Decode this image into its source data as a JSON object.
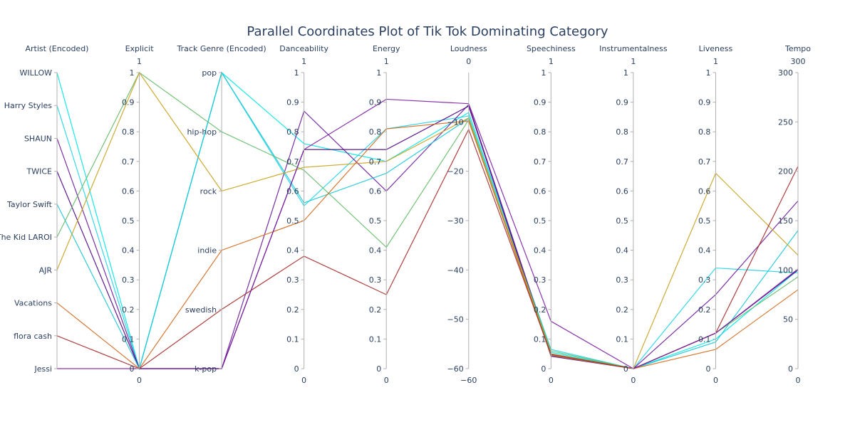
{
  "chart_data": {
    "type": "parallel_coordinates",
    "title": "Parallel Coordinates Plot of Tik Tok Dominating Category",
    "dimensions": [
      {
        "label": "Artist (Encoded)",
        "kind": "categorical",
        "categories": [
          "Jessi",
          "flora cash",
          "Vacations",
          "AJR",
          "The Kid LAROI",
          "Taylor Swift",
          "TWICE",
          "SHAUN",
          "Harry Styles",
          "WILLOW"
        ]
      },
      {
        "label": "Explicit",
        "kind": "numeric",
        "range": [
          0,
          1
        ],
        "ticks": [
          0,
          0.1,
          0.2,
          0.3,
          0.4,
          0.5,
          0.6,
          0.7,
          0.8,
          0.9,
          1
        ],
        "range_labels": [
          "0",
          "1"
        ]
      },
      {
        "label": "Track Genre (Encoded)",
        "kind": "categorical",
        "categories": [
          "k-pop",
          "swedish",
          "indie",
          "rock",
          "hip-hop",
          "pop"
        ]
      },
      {
        "label": "Danceability",
        "kind": "numeric",
        "range": [
          0,
          1
        ],
        "ticks": [
          0,
          0.1,
          0.2,
          0.3,
          0.4,
          0.5,
          0.6,
          0.7,
          0.8,
          0.9,
          1
        ],
        "range_labels": [
          "0",
          "1"
        ]
      },
      {
        "label": "Energy",
        "kind": "numeric",
        "range": [
          0,
          1
        ],
        "ticks": [
          0,
          0.1,
          0.2,
          0.3,
          0.4,
          0.5,
          0.6,
          0.7,
          0.8,
          0.9,
          1
        ],
        "range_labels": [
          "0",
          "1"
        ]
      },
      {
        "label": "Loudness",
        "kind": "numeric",
        "range": [
          -60,
          0
        ],
        "ticks": [
          -60,
          -50,
          -40,
          -30,
          -20,
          -10
        ],
        "tick_labels": [
          "−60",
          "−50",
          "−40",
          "−30",
          "−20",
          "−10"
        ],
        "range_labels": [
          "−60",
          "0"
        ]
      },
      {
        "label": "Speechiness",
        "kind": "numeric",
        "range": [
          0,
          1
        ],
        "ticks": [
          0,
          0.1,
          0.2,
          0.3,
          0.4,
          0.5,
          0.6,
          0.7,
          0.8,
          0.9,
          1
        ],
        "range_labels": [
          "0",
          "1"
        ]
      },
      {
        "label": "Instrumentalness",
        "kind": "numeric",
        "range": [
          0,
          1
        ],
        "ticks": [
          0,
          0.1,
          0.2,
          0.3,
          0.4,
          0.5,
          0.6,
          0.7,
          0.8,
          0.9,
          1
        ],
        "range_labels": [
          "0",
          "1"
        ]
      },
      {
        "label": "Liveness",
        "kind": "numeric",
        "range": [
          0,
          1
        ],
        "ticks": [
          0,
          0.1,
          0.2,
          0.3,
          0.4,
          0.5,
          0.6,
          0.7,
          0.8,
          0.9,
          1
        ],
        "range_labels": [
          "0",
          "1"
        ]
      },
      {
        "label": "Tempo",
        "kind": "numeric",
        "range": [
          0,
          300
        ],
        "ticks": [
          0,
          50,
          100,
          150,
          200,
          250,
          300
        ],
        "range_labels": [
          "0",
          "300"
        ]
      }
    ],
    "records": [
      {
        "color": "#00e5e5",
        "values": [
          9,
          0,
          5,
          0.76,
          0.7,
          -8.1,
          0.055,
          0.0,
          0.1,
          100
        ]
      },
      {
        "color": "#22d3e6",
        "values": [
          8,
          0,
          5,
          0.55,
          0.81,
          -8.8,
          0.065,
          0.0,
          0.34,
          97
        ]
      },
      {
        "color": "#6a1b9a",
        "values": [
          7,
          0,
          0,
          0.87,
          0.6,
          -6.5,
          0.05,
          0.0,
          0.25,
          170
        ]
      },
      {
        "color": "#4b0082",
        "values": [
          6,
          0,
          0,
          0.74,
          0.74,
          -6.8,
          0.042,
          0.0,
          0.12,
          100
        ]
      },
      {
        "color": "#1bc6d6",
        "values": [
          5,
          0,
          5,
          0.56,
          0.66,
          -9.3,
          0.045,
          0.0,
          0.09,
          140
        ]
      },
      {
        "color": "#66bb6a",
        "values": [
          4,
          1,
          4,
          0.67,
          0.41,
          -9.6,
          0.06,
          0.0,
          0.12,
          93
        ]
      },
      {
        "color": "#c8a21e",
        "values": [
          3,
          1,
          3,
          0.68,
          0.7,
          -9.2,
          0.05,
          0.0,
          0.66,
          115
        ]
      },
      {
        "color": "#d2691e",
        "values": [
          2,
          0,
          2,
          0.5,
          0.81,
          -9.8,
          0.045,
          0.0,
          0.065,
          80
        ]
      },
      {
        "color": "#a52a2a",
        "values": [
          1,
          0,
          1,
          0.38,
          0.25,
          -11.5,
          0.048,
          0.0,
          0.12,
          205
        ]
      },
      {
        "color": "#7b1fa2",
        "values": [
          0,
          0,
          0,
          0.74,
          0.91,
          -6.3,
          0.16,
          0.0,
          0.12,
          101
        ]
      }
    ]
  }
}
